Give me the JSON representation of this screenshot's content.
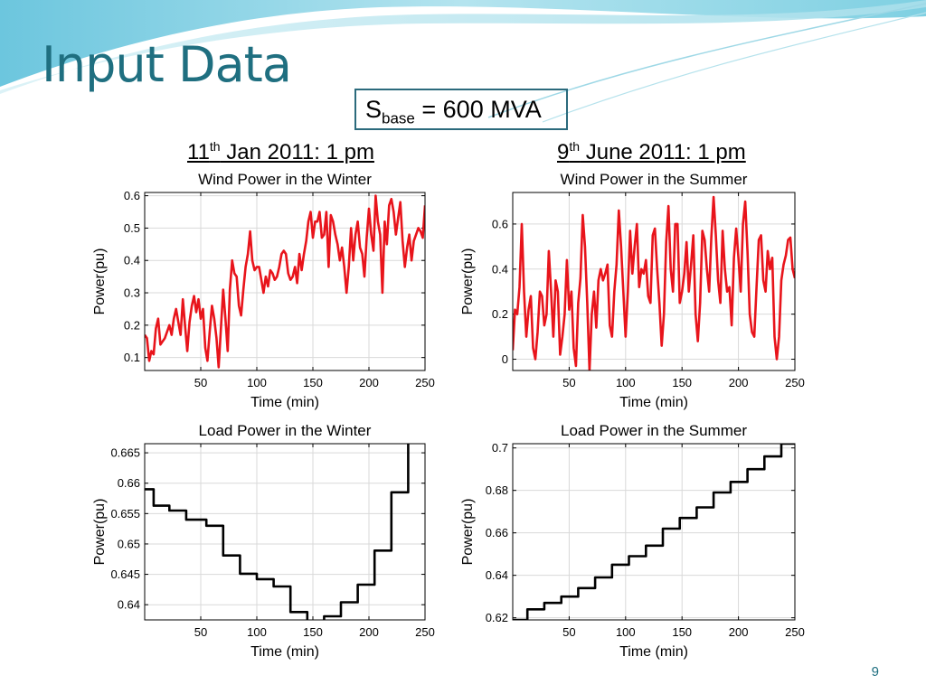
{
  "slide": {
    "title": "Input Data",
    "sbase": {
      "symbol": "S",
      "subscript": "base",
      "rest": " = 600 MVA"
    },
    "date_winter": {
      "pre": "11",
      "sup": "th",
      "post": " Jan 2011: 1 pm"
    },
    "date_summer": {
      "pre": "9",
      "sup": "th",
      "post": " June 2011: 1 pm"
    },
    "page_number": "9",
    "accent_color": "#1f6f80"
  },
  "chart_data": [
    {
      "type": "line",
      "title": "Wind Power in the Winter",
      "xlabel": "Time (min)",
      "ylabel": "Power(pu)",
      "xlim": [
        0,
        250
      ],
      "ylim": [
        0.06,
        0.61
      ],
      "xticks": [
        50,
        100,
        150,
        200,
        250
      ],
      "yticks": [
        0.1,
        0.2,
        0.3,
        0.4,
        0.5,
        0.6
      ],
      "ytick_labels": [
        "0.1",
        "0.2",
        "0.3",
        "0.4",
        "0.5",
        "0.6"
      ],
      "grid": true,
      "color": "#e8141b",
      "x": [
        0,
        2,
        4,
        6,
        8,
        10,
        12,
        14,
        16,
        18,
        20,
        22,
        24,
        26,
        28,
        30,
        32,
        34,
        36,
        38,
        40,
        42,
        44,
        46,
        48,
        50,
        52,
        54,
        56,
        58,
        60,
        62,
        64,
        66,
        68,
        70,
        72,
        74,
        76,
        78,
        80,
        82,
        84,
        86,
        88,
        90,
        92,
        94,
        96,
        98,
        100,
        102,
        104,
        106,
        108,
        110,
        112,
        114,
        116,
        118,
        120,
        122,
        124,
        126,
        128,
        130,
        132,
        134,
        136,
        138,
        140,
        142,
        144,
        146,
        148,
        150,
        152,
        154,
        156,
        158,
        160,
        162,
        164,
        166,
        168,
        170,
        172,
        174,
        176,
        178,
        180,
        182,
        184,
        186,
        188,
        190,
        192,
        194,
        196,
        198,
        200,
        202,
        204,
        206,
        208,
        210,
        212,
        214,
        216,
        218,
        220,
        222,
        224,
        226,
        228,
        230,
        232,
        234,
        236,
        238,
        240,
        242,
        244,
        246,
        248,
        250
      ],
      "y": [
        0.17,
        0.16,
        0.09,
        0.12,
        0.11,
        0.19,
        0.22,
        0.14,
        0.15,
        0.16,
        0.18,
        0.2,
        0.17,
        0.22,
        0.25,
        0.21,
        0.17,
        0.28,
        0.2,
        0.12,
        0.21,
        0.26,
        0.29,
        0.24,
        0.28,
        0.22,
        0.25,
        0.13,
        0.09,
        0.18,
        0.26,
        0.22,
        0.16,
        0.07,
        0.19,
        0.31,
        0.22,
        0.12,
        0.31,
        0.4,
        0.36,
        0.35,
        0.26,
        0.23,
        0.31,
        0.38,
        0.42,
        0.49,
        0.4,
        0.37,
        0.38,
        0.38,
        0.34,
        0.3,
        0.35,
        0.32,
        0.37,
        0.36,
        0.34,
        0.35,
        0.38,
        0.42,
        0.43,
        0.42,
        0.36,
        0.34,
        0.35,
        0.38,
        0.33,
        0.42,
        0.37,
        0.42,
        0.46,
        0.52,
        0.55,
        0.47,
        0.52,
        0.52,
        0.55,
        0.47,
        0.48,
        0.55,
        0.38,
        0.54,
        0.52,
        0.48,
        0.45,
        0.4,
        0.44,
        0.38,
        0.3,
        0.38,
        0.5,
        0.4,
        0.48,
        0.52,
        0.44,
        0.42,
        0.35,
        0.47,
        0.56,
        0.48,
        0.43,
        0.6,
        0.52,
        0.48,
        0.3,
        0.52,
        0.45,
        0.57,
        0.59,
        0.55,
        0.48,
        0.53,
        0.58,
        0.46,
        0.38,
        0.44,
        0.48,
        0.4,
        0.46,
        0.48,
        0.5,
        0.49,
        0.47,
        0.57
      ]
    },
    {
      "type": "line",
      "title": "Wind Power in the Summer",
      "xlabel": "Time (min)",
      "ylabel": "Power(pu)",
      "xlim": [
        0,
        250
      ],
      "ylim": [
        -0.05,
        0.74
      ],
      "xticks": [
        50,
        100,
        150,
        200,
        250
      ],
      "yticks": [
        0,
        0.2,
        0.4,
        0.6
      ],
      "ytick_labels": [
        "0",
        "0.2",
        "0.4",
        "0.6"
      ],
      "grid": true,
      "color": "#e8141b",
      "x": [
        0,
        2,
        4,
        6,
        8,
        10,
        12,
        14,
        16,
        18,
        20,
        22,
        24,
        26,
        28,
        30,
        32,
        34,
        36,
        38,
        40,
        42,
        44,
        46,
        48,
        50,
        52,
        54,
        56,
        58,
        60,
        62,
        64,
        66,
        68,
        70,
        72,
        74,
        76,
        78,
        80,
        82,
        84,
        86,
        88,
        90,
        92,
        94,
        96,
        98,
        100,
        102,
        104,
        106,
        108,
        110,
        112,
        114,
        116,
        118,
        120,
        122,
        124,
        126,
        128,
        130,
        132,
        134,
        136,
        138,
        140,
        142,
        144,
        146,
        148,
        150,
        152,
        154,
        156,
        158,
        160,
        162,
        164,
        166,
        168,
        170,
        172,
        174,
        176,
        178,
        180,
        182,
        184,
        186,
        188,
        190,
        192,
        194,
        196,
        198,
        200,
        202,
        204,
        206,
        208,
        210,
        212,
        214,
        216,
        218,
        220,
        222,
        224,
        226,
        228,
        230,
        232,
        234,
        236,
        238,
        240,
        242,
        244,
        246,
        248,
        250
      ],
      "y": [
        0.04,
        0.22,
        0.2,
        0.32,
        0.6,
        0.3,
        0.1,
        0.22,
        0.28,
        0.05,
        0.0,
        0.12,
        0.3,
        0.28,
        0.15,
        0.2,
        0.48,
        0.3,
        0.1,
        0.35,
        0.3,
        0.02,
        0.1,
        0.2,
        0.44,
        0.22,
        0.3,
        0.05,
        -0.03,
        0.25,
        0.36,
        0.64,
        0.5,
        0.25,
        -0.05,
        0.2,
        0.3,
        0.14,
        0.35,
        0.4,
        0.35,
        0.38,
        0.42,
        0.15,
        0.1,
        0.3,
        0.42,
        0.66,
        0.5,
        0.3,
        0.1,
        0.3,
        0.57,
        0.38,
        0.5,
        0.6,
        0.32,
        0.4,
        0.38,
        0.44,
        0.28,
        0.25,
        0.55,
        0.58,
        0.4,
        0.25,
        0.06,
        0.2,
        0.52,
        0.68,
        0.4,
        0.3,
        0.6,
        0.6,
        0.25,
        0.3,
        0.38,
        0.52,
        0.3,
        0.42,
        0.55,
        0.2,
        0.08,
        0.25,
        0.57,
        0.53,
        0.4,
        0.3,
        0.54,
        0.72,
        0.55,
        0.35,
        0.25,
        0.57,
        0.4,
        0.3,
        0.32,
        0.15,
        0.45,
        0.58,
        0.45,
        0.3,
        0.6,
        0.7,
        0.48,
        0.2,
        0.12,
        0.1,
        0.32,
        0.53,
        0.55,
        0.35,
        0.3,
        0.48,
        0.4,
        0.45,
        0.1,
        0.0,
        0.1,
        0.35,
        0.42,
        0.46,
        0.53,
        0.54,
        0.4,
        0.36
      ]
    },
    {
      "type": "line",
      "title": "Load Power in the Winter",
      "xlabel": "Time (min)",
      "ylabel": "Power(pu)",
      "xlim": [
        0,
        250
      ],
      "ylim": [
        0.6375,
        0.6665
      ],
      "xticks": [
        50,
        100,
        150,
        200,
        250
      ],
      "yticks": [
        0.64,
        0.645,
        0.65,
        0.655,
        0.66,
        0.665
      ],
      "ytick_labels": [
        "0.64",
        "0.645",
        "0.65",
        "0.655",
        "0.66",
        "0.665"
      ],
      "grid": true,
      "color": "#000000",
      "step": true,
      "x": [
        0,
        8,
        8,
        22,
        22,
        37,
        37,
        55,
        55,
        70,
        70,
        85,
        85,
        100,
        100,
        115,
        115,
        130,
        130,
        145,
        145,
        160,
        160,
        175,
        175,
        190,
        190,
        205,
        205,
        220,
        220,
        235,
        235,
        250
      ],
      "y": [
        0.659,
        0.659,
        0.6563,
        0.6563,
        0.6555,
        0.6555,
        0.654,
        0.654,
        0.653,
        0.653,
        0.6481,
        0.6481,
        0.6451,
        0.6451,
        0.6442,
        0.6442,
        0.643,
        0.643,
        0.6388,
        0.6388,
        0.6372,
        0.6372,
        0.6381,
        0.6381,
        0.6404,
        0.6404,
        0.6433,
        0.6433,
        0.6489,
        0.6489,
        0.6585,
        0.6585,
        0.667,
        0.667
      ]
    },
    {
      "type": "line",
      "title": "Load Power in the Summer",
      "xlabel": "Time (min)",
      "ylabel": "Power(pu)",
      "xlim": [
        0,
        250
      ],
      "ylim": [
        0.619,
        0.702
      ],
      "xticks": [
        50,
        100,
        150,
        200,
        250
      ],
      "yticks": [
        0.62,
        0.64,
        0.66,
        0.68,
        0.7
      ],
      "ytick_labels": [
        "0.62",
        "0.64",
        "0.66",
        "0.68",
        "0.7"
      ],
      "grid": true,
      "color": "#000000",
      "step": true,
      "x": [
        0,
        13,
        13,
        28,
        28,
        43,
        43,
        58,
        58,
        73,
        73,
        88,
        88,
        103,
        103,
        118,
        118,
        133,
        133,
        148,
        148,
        163,
        163,
        178,
        178,
        193,
        193,
        208,
        208,
        223,
        223,
        238,
        238,
        250
      ],
      "y": [
        0.619,
        0.619,
        0.624,
        0.624,
        0.627,
        0.627,
        0.63,
        0.63,
        0.634,
        0.634,
        0.639,
        0.639,
        0.645,
        0.645,
        0.649,
        0.649,
        0.654,
        0.654,
        0.662,
        0.662,
        0.667,
        0.667,
        0.672,
        0.672,
        0.679,
        0.679,
        0.684,
        0.684,
        0.69,
        0.69,
        0.696,
        0.696,
        0.702,
        0.702
      ]
    }
  ]
}
